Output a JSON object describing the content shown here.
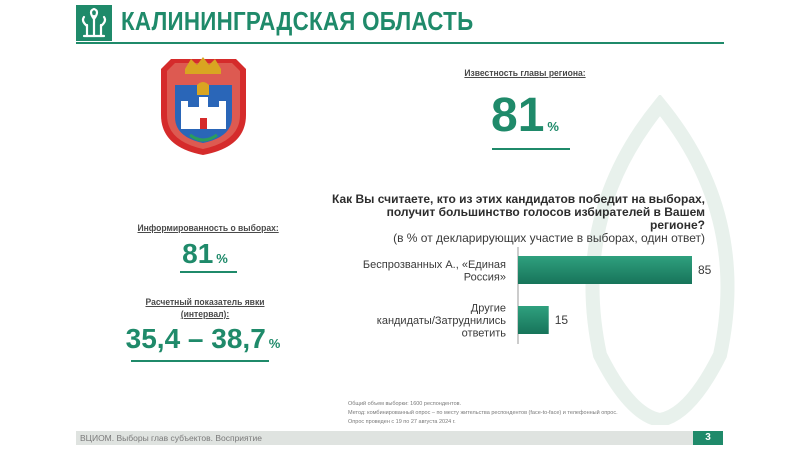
{
  "header": {
    "title": "КАЛИНИНГРАДСКАЯ ОБЛАСТЬ"
  },
  "stats": {
    "recognition": {
      "label": "Известность главы региона:",
      "value": "81",
      "unit": "%"
    },
    "informed": {
      "label": "Информированность о выборах:",
      "value": "81",
      "unit": "%"
    },
    "turnout": {
      "label_line1": "Расчетный показатель явки",
      "label_line2": "(интервал):",
      "value": "35,4 – 38,7",
      "unit": "%"
    }
  },
  "question": {
    "line1": "Как Вы считаете, кто из этих кандидатов победит на выборах,",
    "line2": "получит большинство голосов избирателей в Вашем регионе?",
    "line3": "(в % от  декларирующих участие в выборах, один ответ)"
  },
  "chart_data": {
    "type": "bar",
    "orientation": "horizontal",
    "categories": [
      [
        "Беспрозванных А., «Единая",
        "Россия»"
      ],
      [
        "Другие",
        "кандидаты/Затруднились",
        "ответить"
      ]
    ],
    "values": [
      85,
      15
    ],
    "value_labels": [
      "85",
      "15"
    ],
    "xlim": [
      0,
      100
    ],
    "color": "#1f8a6a"
  },
  "footer": {
    "notes": [
      "Общий объем выборки: 1600 респондентов.",
      "Метод: комбинированный опрос – по месту жительства респондентов (face-to-face) и телефонный опрос.",
      "Опрос проведен с 19 по 27 августа 2024 г."
    ],
    "source": "ВЦИОМ. Выборы глав субъектов. Восприятие",
    "page": "3"
  },
  "colors": {
    "brand": "#1f8a6a",
    "crest_red": "#d52b2b",
    "crest_gold": "#d9a521"
  }
}
